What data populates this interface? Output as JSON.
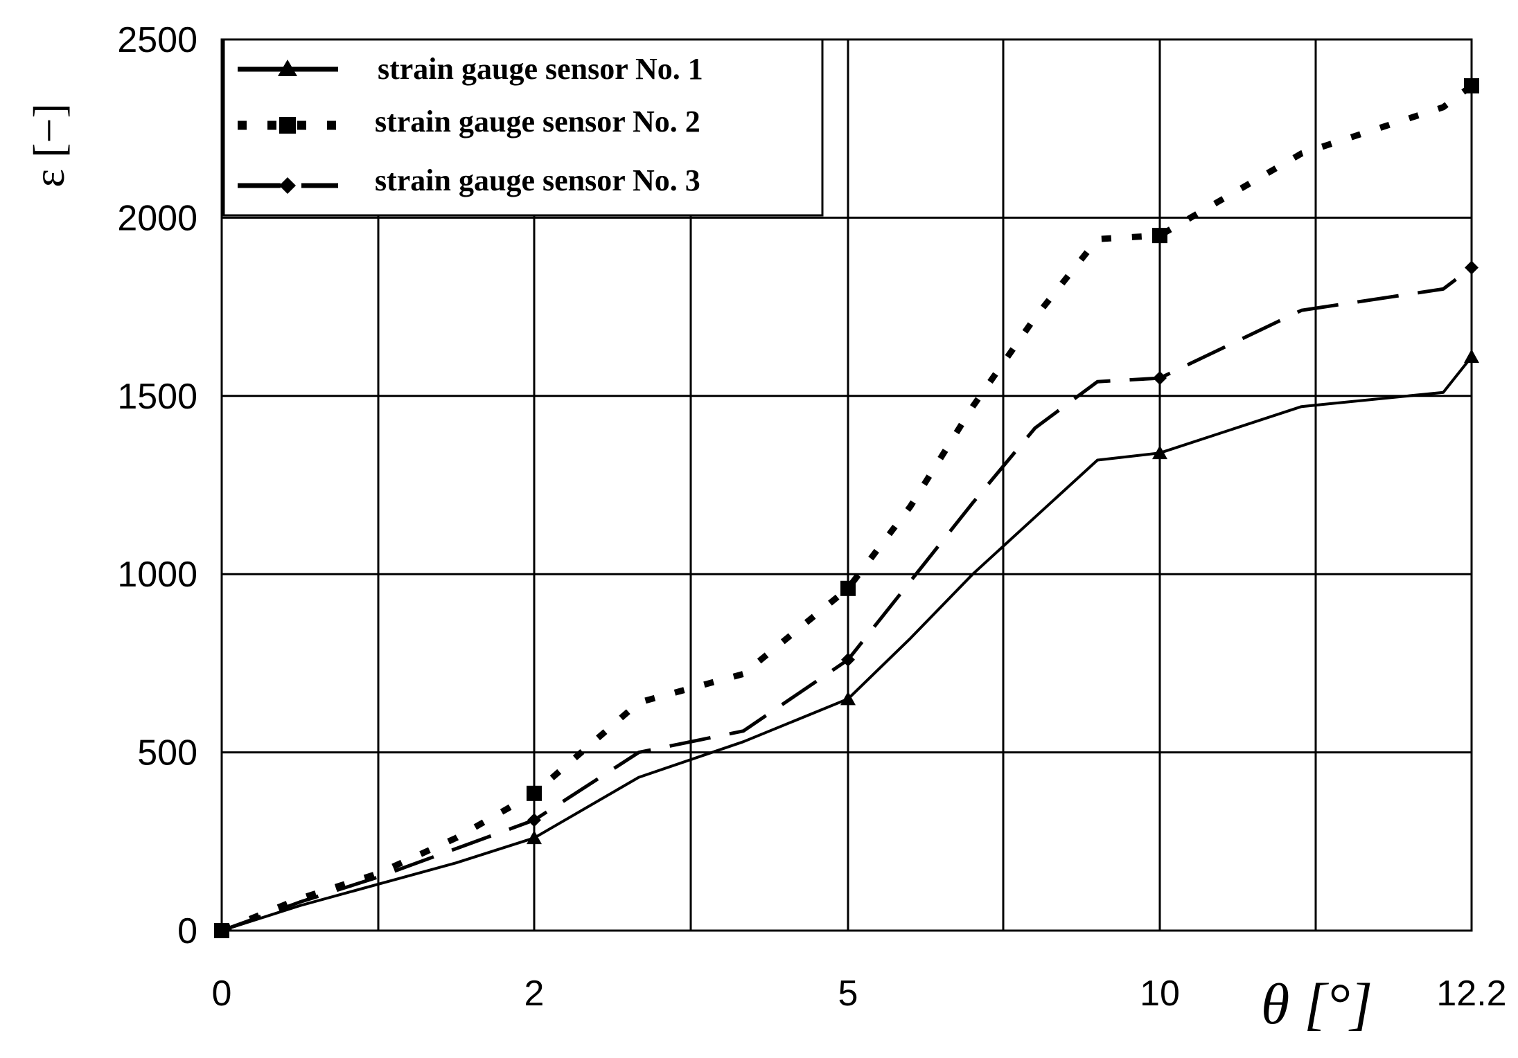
{
  "chart_data": {
    "type": "line",
    "xlabel": "θ [°]",
    "ylabel": "ε [−]",
    "x_tick_labels": [
      "0",
      "2",
      "5",
      "10",
      "12.2"
    ],
    "y_tick_labels": [
      "0",
      "500",
      "1000",
      "1500",
      "2000",
      "2500"
    ],
    "ylim": [
      0,
      2500
    ],
    "grid": true,
    "legend_position": "top-left",
    "series": [
      {
        "name": "strain gauge sensor No. 1",
        "style": "solid",
        "marker": "triangle",
        "marker_x": [
          0,
          2,
          5,
          10,
          12.2
        ],
        "x": [
          0,
          0.5,
          1,
          1.5,
          2,
          3,
          4,
          5,
          6,
          7,
          8,
          9,
          10,
          11,
          12,
          12.2
        ],
        "y": [
          0,
          70,
          130,
          190,
          260,
          430,
          530,
          650,
          820,
          1000,
          1160,
          1320,
          1340,
          1470,
          1510,
          1610
        ]
      },
      {
        "name": "strain gauge sensor No. 2",
        "style": "dotted",
        "marker": "square",
        "marker_x": [
          0,
          2,
          5,
          10,
          12.2
        ],
        "x": [
          0,
          0.5,
          1,
          1.5,
          2,
          3,
          4,
          5,
          6,
          7,
          8,
          9,
          10,
          11,
          12,
          12.2
        ],
        "y": [
          0,
          90,
          160,
          260,
          385,
          640,
          720,
          960,
          1190,
          1470,
          1720,
          1940,
          1950,
          2180,
          2310,
          2370
        ]
      },
      {
        "name": "strain gauge sensor No. 3",
        "style": "dashed",
        "marker": "diamond",
        "marker_x": [
          0,
          2,
          5,
          10,
          12.2
        ],
        "x": [
          0,
          0.5,
          1,
          1.5,
          2,
          3,
          4,
          5,
          6,
          7,
          8,
          9,
          10,
          11,
          12,
          12.2
        ],
        "y": [
          0,
          80,
          150,
          230,
          310,
          500,
          560,
          760,
          980,
          1200,
          1410,
          1540,
          1550,
          1740,
          1800,
          1860
        ]
      }
    ]
  }
}
